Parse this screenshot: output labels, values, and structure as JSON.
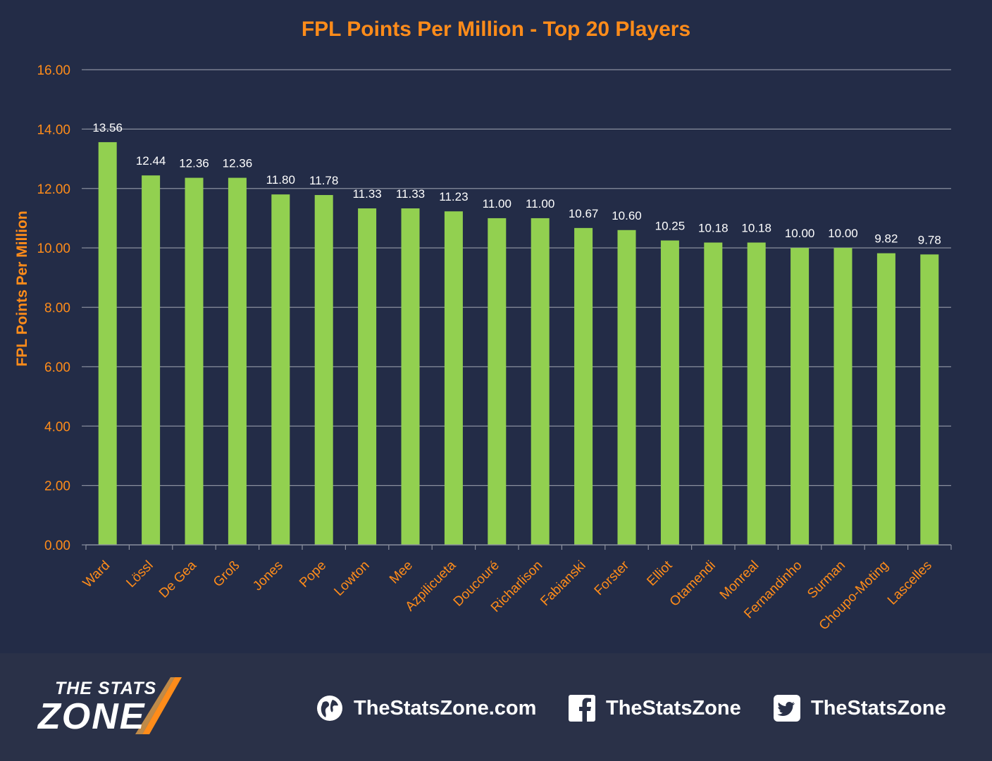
{
  "chart_data": {
    "type": "bar",
    "title": "FPL Points Per Million - Top 20 Players",
    "xlabel": "",
    "ylabel": "FPL Points Per Million",
    "ylim": [
      0,
      16
    ],
    "yticks": [
      "0.00",
      "2.00",
      "4.00",
      "6.00",
      "8.00",
      "10.00",
      "12.00",
      "14.00",
      "16.00"
    ],
    "grid": "horizontal",
    "categories": [
      "Ward",
      "Lössl",
      "De Gea",
      "Groß",
      "Jones",
      "Pope",
      "Lowton",
      "Mee",
      "Azpilicueta",
      "Doucouré",
      "Richarlison",
      "Fabianski",
      "Forster",
      "Elliot",
      "Otamendi",
      "Monreal",
      "Fernandinho",
      "Surman",
      "Choupo-Moting",
      "Lascelles"
    ],
    "values": [
      13.56,
      12.44,
      12.36,
      12.36,
      11.8,
      11.78,
      11.33,
      11.33,
      11.23,
      11.0,
      11.0,
      10.67,
      10.6,
      10.25,
      10.18,
      10.18,
      10.0,
      10.0,
      9.82,
      9.78
    ],
    "data_labels": [
      "13.56",
      "12.44",
      "12.36",
      "12.36",
      "11.80",
      "11.78",
      "11.33",
      "11.33",
      "11.23",
      "11.00",
      "11.00",
      "10.67",
      "10.60",
      "10.25",
      "10.18",
      "10.18",
      "10.00",
      "10.00",
      "9.82",
      "9.78"
    ]
  },
  "colors": {
    "background": "#232c47",
    "footer_background": "#2a3148",
    "bar": "#92d050",
    "title": "#ff8c1a",
    "axis_text": "#ff8c1a",
    "data_label": "#ffffff",
    "grid": "#8a8f9e"
  },
  "footer": {
    "logo_line1": "THE STATS",
    "logo_line2": "ZONE",
    "website": "TheStatsZone.com",
    "facebook": "TheStatsZone",
    "twitter": "TheStatsZone",
    "icons": [
      "globe-icon",
      "facebook-icon",
      "twitter-icon"
    ]
  }
}
